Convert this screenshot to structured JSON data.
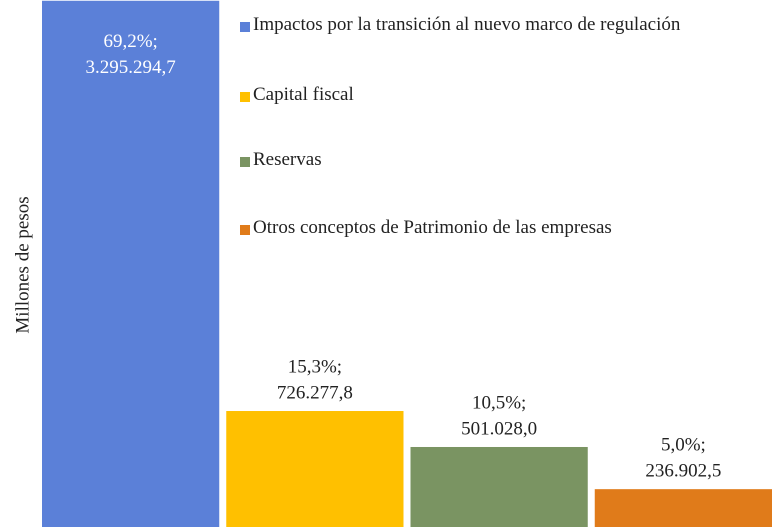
{
  "chart_data": {
    "type": "bar",
    "y_label": "Millones de pesos",
    "ylim": [
      0,
      3300000
    ],
    "series": [
      {
        "name": "Impactos por la transición al nuevo marco de regulación",
        "color": "#5b80d8",
        "values": [
          3295294.7
        ],
        "value_labels": [
          [
            "69,2%;",
            "3.295.294,7"
          ]
        ]
      },
      {
        "name": "Capital fiscal",
        "color": "#ffc000",
        "values": [
          726277.8
        ],
        "value_labels": [
          [
            "15,3%;",
            "726.277,8"
          ]
        ]
      },
      {
        "name": "Reservas",
        "color": "#7a9462",
        "values": [
          501028.0
        ],
        "value_labels": [
          [
            "10,5%;",
            "501.028,0"
          ]
        ]
      },
      {
        "name": "Otros conceptos de Patrimonio de las empresas",
        "color": "#e07b1a",
        "values": [
          236902.5
        ],
        "value_labels": [
          [
            "5,0%;",
            "236.902,5"
          ]
        ]
      }
    ]
  }
}
